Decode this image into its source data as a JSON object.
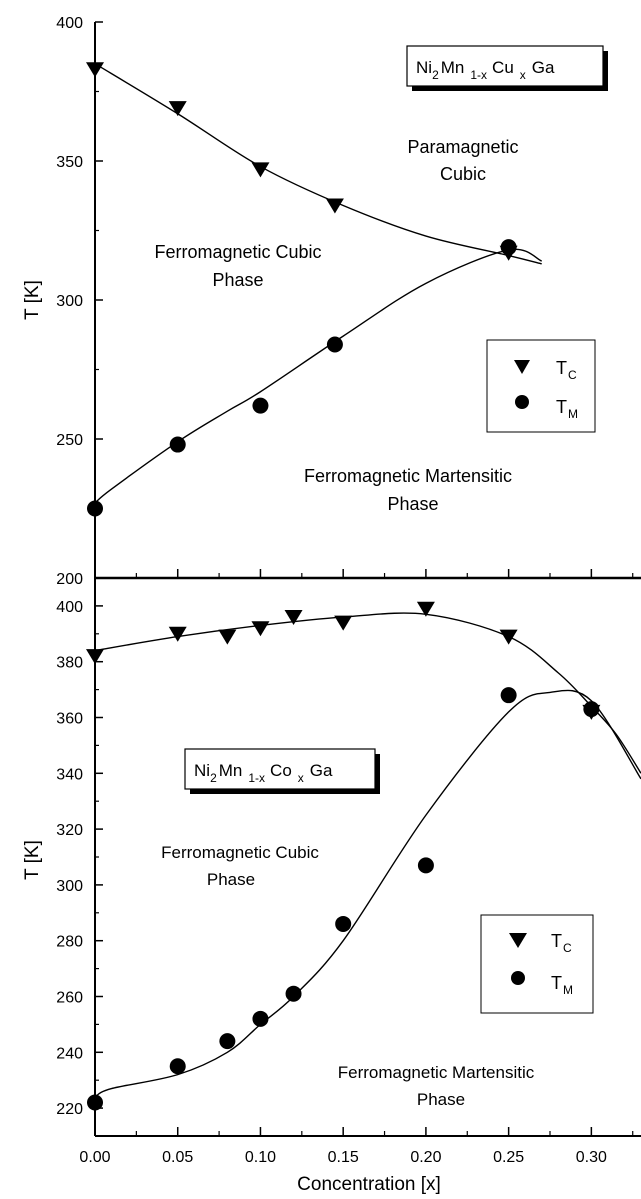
{
  "chart_data": [
    {
      "type": "scatter",
      "panel": "top",
      "ylabel": "T [K]",
      "ylim": [
        200,
        400
      ],
      "xlim": [
        0.0,
        0.33
      ],
      "yticks": [
        200,
        250,
        300,
        350,
        400
      ],
      "formula": {
        "p1": "Ni",
        "s1": "2",
        "p2": "Mn",
        "s2": "1-x",
        "p3": "Cu",
        "s3": "x",
        "p4": "Ga"
      },
      "annotations": {
        "para_l1": "Paramagnetic",
        "para_l2": "Cubic",
        "fc_l1": "Ferromagnetic Cubic",
        "fc_l2": "Phase",
        "fm_l1": "Ferromagnetic Martensitic",
        "fm_l2": "Phase"
      },
      "legend": [
        {
          "main": "T",
          "sub": "C",
          "marker": "triangle"
        },
        {
          "main": "T",
          "sub": "M",
          "marker": "circle"
        }
      ],
      "legend_position": "right",
      "series": [
        {
          "marker": "triangle",
          "x": [
            0.0,
            0.05,
            0.1,
            0.145,
            0.25
          ],
          "y": [
            383,
            369,
            347,
            334,
            317
          ],
          "fit_x": [
            0.0,
            0.05,
            0.1,
            0.15,
            0.2,
            0.25,
            0.27
          ],
          "fit_y": [
            385,
            367,
            348,
            334,
            323,
            316,
            313
          ]
        },
        {
          "marker": "circle",
          "x": [
            0.0,
            0.05,
            0.1,
            0.145,
            0.25
          ],
          "y": [
            225,
            248,
            262,
            284,
            319
          ],
          "fit_x": [
            0.0,
            0.01,
            0.05,
            0.08,
            0.1,
            0.15,
            0.2,
            0.25,
            0.27
          ],
          "fit_y": [
            227,
            232,
            249,
            260,
            267,
            287,
            306,
            318,
            314
          ]
        }
      ]
    },
    {
      "type": "scatter",
      "panel": "bottom",
      "xlabel": "Concentration [x]",
      "ylabel": "T [K]",
      "ylim": [
        210,
        410
      ],
      "xlim": [
        0.0,
        0.33
      ],
      "xticks": [
        "0.00",
        "0.05",
        "0.10",
        "0.15",
        "0.20",
        "0.25",
        "0.30"
      ],
      "yticks": [
        220,
        240,
        260,
        280,
        300,
        320,
        340,
        360,
        380,
        400
      ],
      "formula": {
        "p1": "Ni",
        "s1": "2",
        "p2": "Mn",
        "s2": "1-x",
        "p3": "Co",
        "s3": "x",
        "p4": "Ga"
      },
      "annotations": {
        "fc_l1": "Ferromagnetic Cubic",
        "fc_l2": "Phase",
        "fm_l1": "Ferromagnetic Martensitic",
        "fm_l2": "Phase"
      },
      "legend": [
        {
          "main": "T",
          "sub": "C",
          "marker": "triangle"
        },
        {
          "main": "T",
          "sub": "M",
          "marker": "circle"
        }
      ],
      "legend_position": "right",
      "series": [
        {
          "marker": "triangle",
          "x": [
            0.0,
            0.05,
            0.08,
            0.1,
            0.12,
            0.15,
            0.2,
            0.25,
            0.3
          ],
          "y": [
            382,
            390,
            389,
            392,
            396,
            394,
            399,
            389,
            362
          ],
          "fit_x": [
            0.0,
            0.05,
            0.1,
            0.15,
            0.2,
            0.25,
            0.28,
            0.3,
            0.315,
            0.33
          ],
          "fit_y": [
            384,
            389,
            393,
            396,
            397,
            389,
            376,
            364,
            354,
            340
          ]
        },
        {
          "marker": "circle",
          "x": [
            0.0,
            0.05,
            0.08,
            0.1,
            0.12,
            0.15,
            0.2,
            0.25,
            0.3
          ],
          "y": [
            222,
            235,
            244,
            252,
            261,
            286,
            307,
            368,
            363
          ],
          "fit_x": [
            0.0,
            0.01,
            0.05,
            0.08,
            0.1,
            0.12,
            0.15,
            0.2,
            0.25,
            0.275,
            0.3,
            0.33
          ],
          "fit_y": [
            224,
            227,
            232,
            240,
            250,
            260,
            280,
            325,
            362,
            369,
            366,
            338
          ]
        }
      ]
    }
  ]
}
